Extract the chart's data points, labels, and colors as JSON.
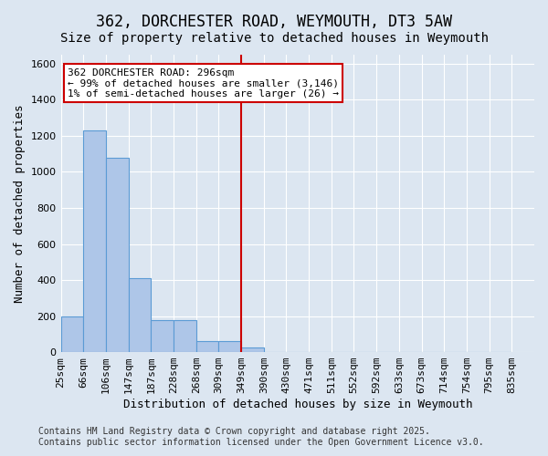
{
  "title": "362, DORCHESTER ROAD, WEYMOUTH, DT3 5AW",
  "subtitle": "Size of property relative to detached houses in Weymouth",
  "xlabel": "Distribution of detached houses by size in Weymouth",
  "ylabel": "Number of detached properties",
  "bins": [
    "25sqm",
    "66sqm",
    "106sqm",
    "147sqm",
    "187sqm",
    "228sqm",
    "268sqm",
    "309sqm",
    "349sqm",
    "390sqm",
    "430sqm",
    "471sqm",
    "511sqm",
    "552sqm",
    "592sqm",
    "633sqm",
    "673sqm",
    "714sqm",
    "754sqm",
    "795sqm",
    "835sqm"
  ],
  "bar_values": [
    200,
    1230,
    1080,
    410,
    175,
    175,
    60,
    60,
    25,
    0,
    0,
    0,
    0,
    0,
    0,
    0,
    0,
    0,
    0,
    0
  ],
  "bar_color": "#aec6e8",
  "bar_edge_color": "#5b9bd5",
  "vline_x": 8,
  "vline_color": "#cc0000",
  "annotation_text": "362 DORCHESTER ROAD: 296sqm\n← 99% of detached houses are smaller (3,146)\n1% of semi-detached houses are larger (26) →",
  "annotation_box_color": "#ffffff",
  "annotation_box_edge": "#cc0000",
  "background_color": "#dce6f1",
  "plot_bg_color": "#dce6f1",
  "footer_line1": "Contains HM Land Registry data © Crown copyright and database right 2025.",
  "footer_line2": "Contains public sector information licensed under the Open Government Licence v3.0.",
  "ylim": [
    0,
    1650
  ],
  "yticks": [
    0,
    200,
    400,
    600,
    800,
    1000,
    1200,
    1400,
    1600
  ],
  "title_fontsize": 12,
  "subtitle_fontsize": 10,
  "axis_label_fontsize": 9,
  "tick_fontsize": 8,
  "annotation_fontsize": 8,
  "footer_fontsize": 7
}
